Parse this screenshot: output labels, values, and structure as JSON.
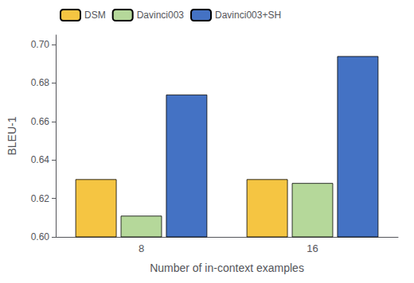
{
  "chart_data": {
    "type": "bar",
    "categories": [
      "8",
      "16"
    ],
    "series": [
      {
        "name": "DSM",
        "color": "#F5C542",
        "values": [
          0.63,
          0.63
        ]
      },
      {
        "name": "Davinci003",
        "color": "#B5D89A",
        "values": [
          0.611,
          0.628
        ]
      },
      {
        "name": "Davinci003+SH",
        "color": "#4472C4",
        "values": [
          0.674,
          0.694
        ]
      }
    ],
    "xlabel": "Number of in-context examples",
    "ylabel": "BLEU-1",
    "ylim": [
      0.6,
      0.705
    ],
    "yticks": [
      {
        "value": 0.6,
        "label": "0.60"
      },
      0.62,
      0.64,
      0.66,
      0.68,
      {
        "value": 0.7,
        "label": "0.70"
      }
    ],
    "legend": "upper left",
    "grid": false
  }
}
